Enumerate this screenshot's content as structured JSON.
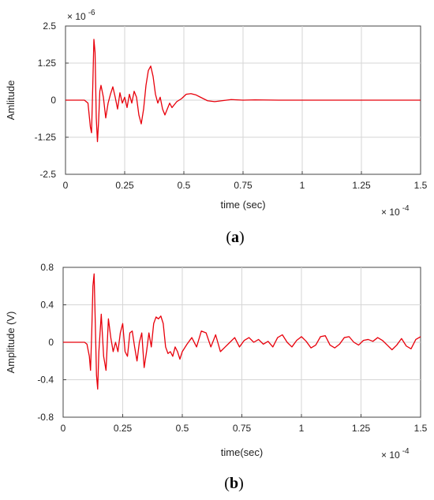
{
  "chart_data": [
    {
      "type": "line",
      "caption": {
        "open": "(",
        "letter": "a",
        "close": ")"
      },
      "xlabel": "time (sec)",
      "ylabel": "Amlitude",
      "x_exponent": {
        "base": "× 10",
        "exp": "-4"
      },
      "y_exponent": {
        "base": "× 10",
        "exp": "-6"
      },
      "xlim": [
        0,
        1.5
      ],
      "ylim": [
        -2.5,
        2.5
      ],
      "xticks": [
        0,
        0.25,
        0.5,
        0.75,
        1,
        1.25,
        1.5
      ],
      "xtick_labels": [
        "0",
        "0.25",
        "0.5",
        "0.75",
        "1",
        "1.25",
        "1.5"
      ],
      "yticks": [
        2.5,
        1.25,
        0,
        -1.25,
        -2.5
      ],
      "ytick_labels": [
        "2.5",
        "1.25",
        "0",
        "-1.25",
        "-2.5"
      ],
      "grid": true,
      "color": "#e8000b",
      "series": [
        {
          "x": [
            0,
            0.08,
            0.095,
            0.105,
            0.11,
            0.115,
            0.12,
            0.125,
            0.13,
            0.135,
            0.14,
            0.145,
            0.15,
            0.16,
            0.17,
            0.18,
            0.19,
            0.2,
            0.21,
            0.22,
            0.23,
            0.24,
            0.25,
            0.26,
            0.27,
            0.28,
            0.29,
            0.3,
            0.31,
            0.32,
            0.33,
            0.34,
            0.35,
            0.36,
            0.37,
            0.38,
            0.39,
            0.4,
            0.41,
            0.42,
            0.43,
            0.44,
            0.45,
            0.47,
            0.49,
            0.51,
            0.53,
            0.55,
            0.57,
            0.6,
            0.63,
            0.66,
            0.7,
            0.75,
            0.8,
            0.9,
            1.0,
            1.1,
            1.2,
            1.3,
            1.4,
            1.5
          ],
          "y": [
            0,
            0,
            -0.1,
            -0.9,
            -1.1,
            0.4,
            2.05,
            1.6,
            -0.6,
            -1.4,
            -0.7,
            0.3,
            0.5,
            0.1,
            -0.6,
            -0.1,
            0.2,
            0.45,
            0.1,
            -0.3,
            0.25,
            -0.1,
            0.1,
            -0.25,
            0.2,
            -0.1,
            0.3,
            0.1,
            -0.5,
            -0.8,
            -0.3,
            0.5,
            1.0,
            1.15,
            0.8,
            0.2,
            -0.1,
            0.1,
            -0.3,
            -0.5,
            -0.3,
            -0.1,
            -0.25,
            -0.05,
            0.05,
            0.2,
            0.22,
            0.18,
            0.1,
            -0.02,
            -0.05,
            -0.02,
            0.02,
            0.0,
            0.01,
            0,
            0,
            0,
            0,
            0,
            0,
            0
          ]
        }
      ]
    },
    {
      "type": "line",
      "caption": {
        "open": "(",
        "letter": "b",
        "close": ")"
      },
      "xlabel": "time(sec)",
      "ylabel": "Amplitude (V)",
      "x_exponent": {
        "base": "× 10",
        "exp": "-4"
      },
      "xlim": [
        0,
        1.5
      ],
      "ylim": [
        -0.8,
        0.8
      ],
      "xticks": [
        0,
        0.25,
        0.5,
        0.75,
        1,
        1.25,
        1.5
      ],
      "xtick_labels": [
        "0",
        "0.25",
        "0.5",
        "0.75",
        "1",
        "1.25",
        "1.5"
      ],
      "yticks": [
        0.8,
        0.4,
        0,
        -0.4,
        -0.8
      ],
      "ytick_labels": [
        "0.8",
        "0.4",
        "0",
        "-0.4",
        "-0.8"
      ],
      "grid": true,
      "color": "#e8000b",
      "series": [
        {
          "x": [
            0,
            0.09,
            0.1,
            0.11,
            0.115,
            0.12,
            0.125,
            0.13,
            0.135,
            0.14,
            0.145,
            0.15,
            0.16,
            0.17,
            0.18,
            0.19,
            0.2,
            0.21,
            0.22,
            0.23,
            0.24,
            0.25,
            0.26,
            0.27,
            0.28,
            0.29,
            0.3,
            0.31,
            0.32,
            0.33,
            0.34,
            0.35,
            0.36,
            0.37,
            0.38,
            0.39,
            0.4,
            0.41,
            0.42,
            0.43,
            0.44,
            0.45,
            0.46,
            0.47,
            0.48,
            0.49,
            0.5,
            0.52,
            0.54,
            0.56,
            0.58,
            0.6,
            0.62,
            0.64,
            0.66,
            0.68,
            0.7,
            0.72,
            0.74,
            0.76,
            0.78,
            0.8,
            0.82,
            0.84,
            0.86,
            0.88,
            0.9,
            0.92,
            0.94,
            0.96,
            0.98,
            1.0,
            1.02,
            1.04,
            1.06,
            1.08,
            1.1,
            1.12,
            1.14,
            1.16,
            1.18,
            1.2,
            1.22,
            1.24,
            1.26,
            1.28,
            1.3,
            1.32,
            1.34,
            1.36,
            1.38,
            1.4,
            1.42,
            1.44,
            1.46,
            1.48,
            1.5
          ],
          "y": [
            0,
            0,
            -0.02,
            -0.15,
            -0.3,
            0.1,
            0.6,
            0.73,
            0.2,
            -0.35,
            -0.5,
            -0.1,
            0.3,
            -0.15,
            -0.3,
            0.25,
            0.05,
            -0.1,
            0.0,
            -0.1,
            0.1,
            0.2,
            -0.1,
            -0.15,
            0.1,
            0.12,
            -0.05,
            -0.2,
            0.0,
            0.1,
            -0.27,
            -0.1,
            0.1,
            -0.05,
            0.2,
            0.27,
            0.25,
            0.28,
            0.2,
            -0.05,
            -0.12,
            -0.1,
            -0.15,
            -0.05,
            -0.1,
            -0.18,
            -0.1,
            -0.02,
            0.05,
            -0.05,
            0.12,
            0.1,
            -0.05,
            0.08,
            -0.1,
            -0.05,
            0.0,
            0.05,
            -0.05,
            0.02,
            0.05,
            0.0,
            0.03,
            -0.02,
            0.01,
            -0.05,
            0.05,
            0.08,
            0.0,
            -0.05,
            0.02,
            0.06,
            0.01,
            -0.06,
            -0.03,
            0.06,
            0.07,
            -0.03,
            -0.06,
            -0.02,
            0.05,
            0.06,
            0.0,
            -0.03,
            0.02,
            0.03,
            0.01,
            0.05,
            0.02,
            -0.03,
            -0.08,
            -0.03,
            0.04,
            -0.04,
            -0.07,
            0.03,
            0.06
          ]
        }
      ]
    }
  ]
}
